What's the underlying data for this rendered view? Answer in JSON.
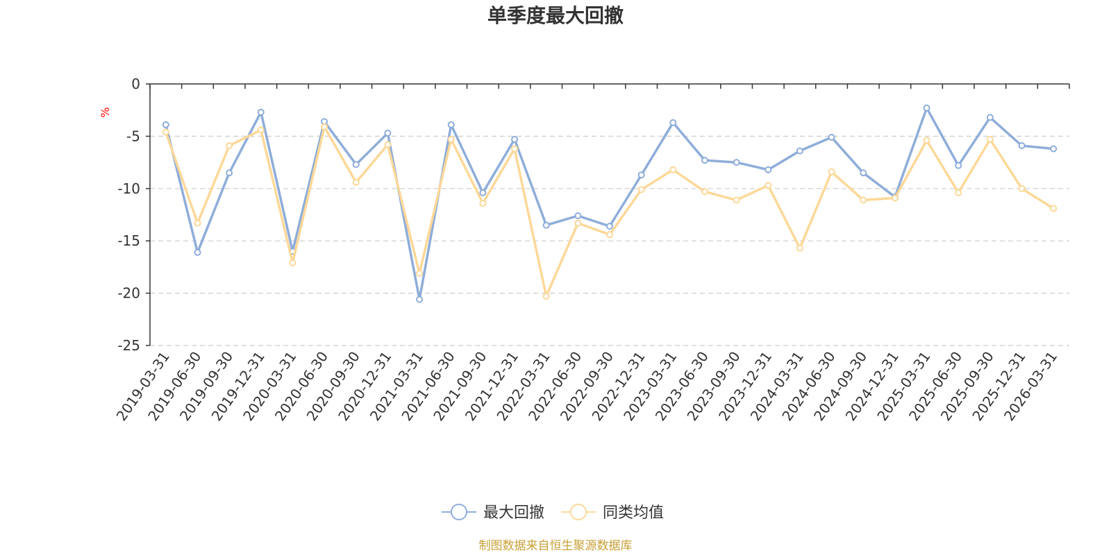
{
  "chart_data": {
    "type": "line",
    "title": "单季度最大回撤",
    "ylabel": "%",
    "ylim": [
      -25,
      0
    ],
    "yticks": [
      0,
      -5,
      -10,
      -15,
      -20,
      -25
    ],
    "grid": true,
    "legend_position": "bottom-center",
    "categories": [
      "2019-03-31",
      "2019-06-30",
      "2019-09-30",
      "2019-12-31",
      "2020-03-31",
      "2020-06-30",
      "2020-09-30",
      "2020-12-31",
      "2021-03-31",
      "2021-06-30",
      "2021-09-30",
      "2021-12-31",
      "2022-03-31",
      "2022-06-30",
      "2022-09-30",
      "2022-12-31",
      "2023-03-31",
      "2023-06-30",
      "2023-09-30",
      "2023-12-31",
      "2024-03-31",
      "2024-06-30",
      "2024-09-30",
      "2024-12-31",
      "2025-03-31",
      "2025-06-30",
      "2025-09-30",
      "2025-12-31",
      "2026-03-31"
    ],
    "series": [
      {
        "name": "最大回撤",
        "color": "#8eadd9",
        "values": [
          -3.9,
          -16.1,
          -8.5,
          -2.7,
          -16.0,
          -3.6,
          -7.7,
          -4.7,
          -20.6,
          -3.9,
          -10.4,
          -5.3,
          -13.5,
          -12.6,
          -13.6,
          -8.7,
          -3.7,
          -7.3,
          -7.5,
          -8.2,
          -6.4,
          -5.1,
          -8.5,
          -10.8,
          -2.3,
          -7.8,
          -3.2,
          -5.9,
          -6.2
        ]
      },
      {
        "name": "同类均值",
        "color": "#fcd898",
        "values": [
          -4.6,
          -13.3,
          -5.9,
          -4.4,
          -17.1,
          -4.1,
          -9.4,
          -5.8,
          -18.1,
          -5.3,
          -11.4,
          -6.2,
          -20.3,
          -13.3,
          -14.4,
          -10.1,
          -8.2,
          -10.3,
          -11.1,
          -9.7,
          -15.7,
          -8.4,
          -11.1,
          -10.9,
          -5.4,
          -10.4,
          -5.3,
          -10.0,
          -11.9
        ]
      }
    ]
  },
  "footer": {
    "source": "制图数据来自恒生聚源数据库"
  }
}
